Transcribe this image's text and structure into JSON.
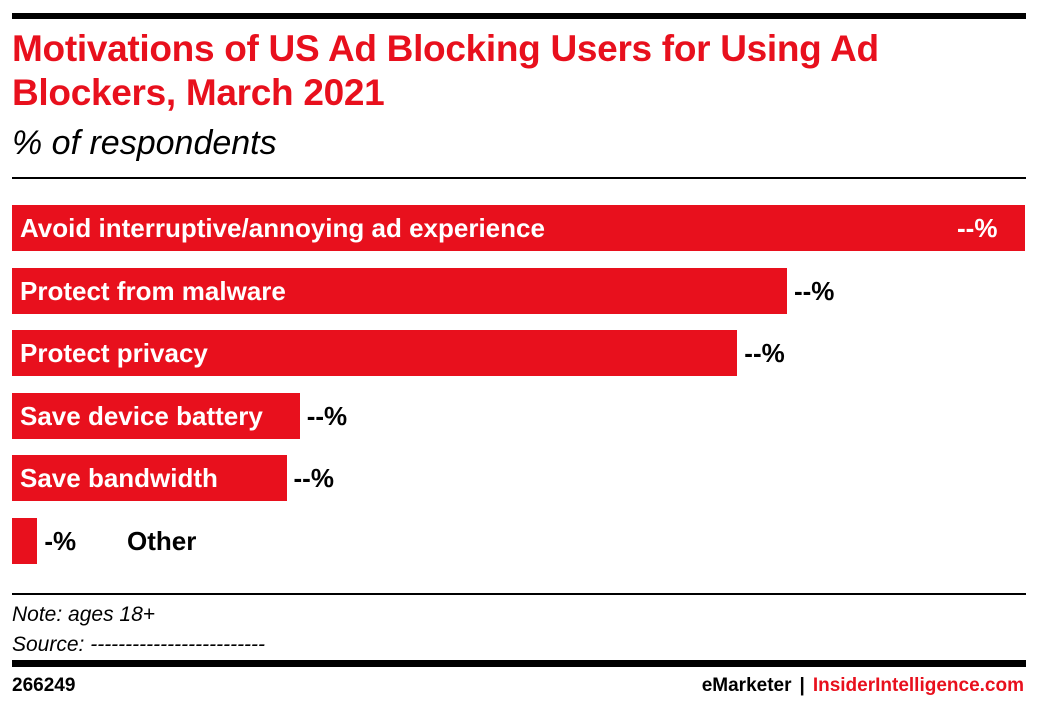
{
  "header": {
    "title": "Motivations of US Ad Blocking Users for Using Ad Blockers, March 2021",
    "subtitle": "% of respondents"
  },
  "chart_data": {
    "type": "bar",
    "orientation": "horizontal",
    "title": "Motivations of US Ad Blocking Users for Using Ad Blockers, March 2021",
    "subtitle": "% of respondents",
    "categories": [
      "Avoid interruptive/annoying ad experience",
      "Protect from malware",
      "Protect privacy",
      "Save device battery",
      "Save bandwidth",
      "Other"
    ],
    "value_labels": [
      "--%",
      "--%",
      "--%",
      "--%",
      "--%",
      "-%"
    ],
    "values_relative_to_max": [
      100,
      76.5,
      71.6,
      28.4,
      27.1,
      2.5
    ],
    "bar_color": "#e8101d",
    "grid": false,
    "legend": "none"
  },
  "footer": {
    "note": "Note: ages 18+",
    "source": "Source: -------------------------",
    "chart_id": "266249",
    "brand_em": "eMarketer",
    "brand_sep": "|",
    "brand_ii": "InsiderIntelligence.com"
  }
}
